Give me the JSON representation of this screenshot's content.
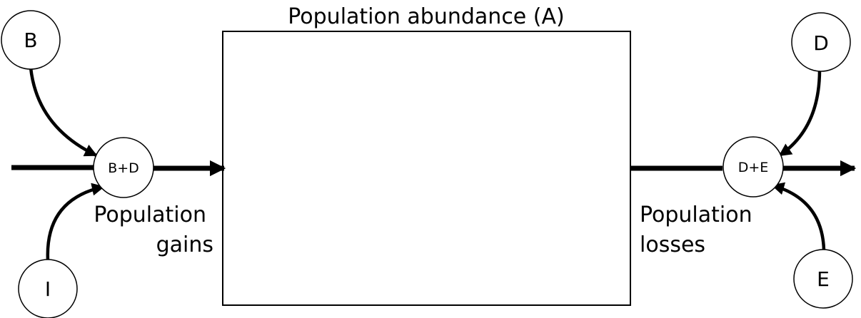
{
  "title": "Population abundance (A)",
  "nodes": {
    "b": "B",
    "i": "I",
    "d": "D",
    "e": "E",
    "gains_junction": "B+D",
    "losses_junction": "D+E"
  },
  "labels": {
    "gains_line1": "Population",
    "gains_line2": "gains",
    "losses_line1": "Population",
    "losses_line2": "losses"
  },
  "colors": {
    "stroke": "#000000",
    "fill": "#ffffff"
  }
}
